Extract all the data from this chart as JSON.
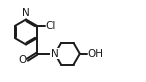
{
  "bg_color": "#ffffff",
  "line_color": "#1a1a1a",
  "line_width": 1.4,
  "fontsize": 7.5,
  "figsize": [
    1.46,
    0.82
  ],
  "dpi": 100,
  "xlim": [
    0,
    1.46
  ],
  "ylim": [
    0,
    0.82
  ]
}
